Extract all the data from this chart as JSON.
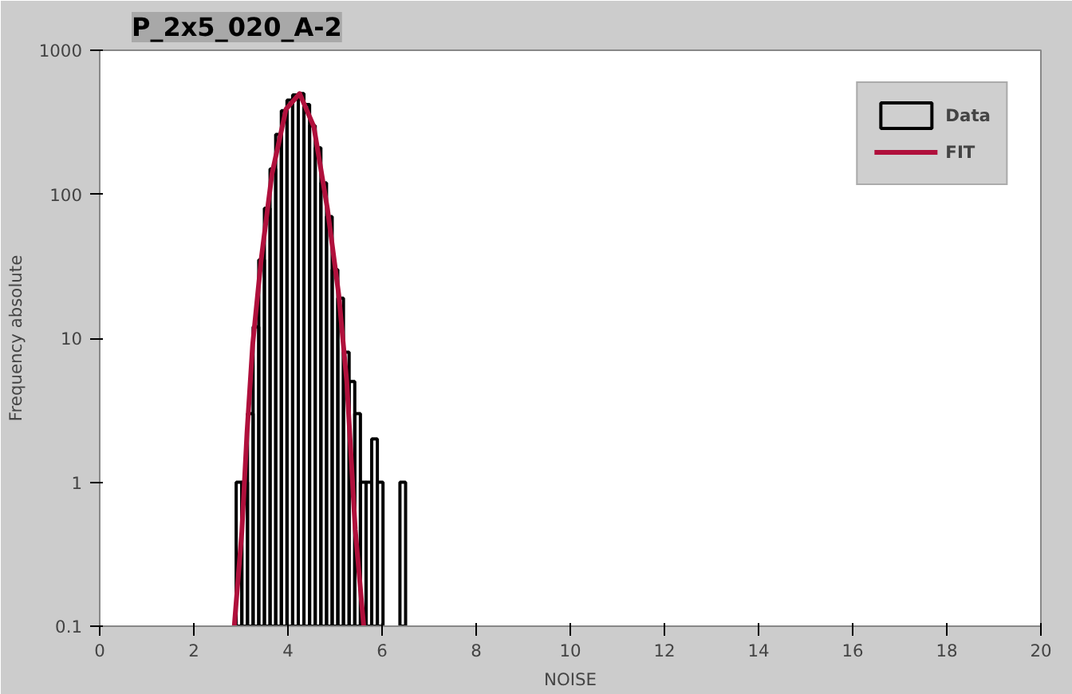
{
  "chart_data": {
    "type": "histogram",
    "title": "P_2x5_020_A-2",
    "xlabel": "NOISE",
    "ylabel": "Frequency absolute",
    "log": "y",
    "xlim": [
      0,
      20
    ],
    "xticks": [
      0,
      2,
      4,
      6,
      8,
      10,
      12,
      14,
      16,
      18,
      20
    ],
    "ylim": [
      0.1,
      1000
    ],
    "yticks": [
      0.1,
      1,
      10,
      100,
      1000
    ],
    "grid": false,
    "legend": "top right",
    "series": [
      {
        "name": "Data",
        "color": "#000000",
        "bins": [
          2.9,
          3.02,
          3.14,
          3.26,
          3.38,
          3.5,
          3.62,
          3.74,
          3.86,
          3.98,
          4.1,
          4.22,
          4.34,
          4.46,
          4.58,
          4.7,
          4.82,
          4.94,
          5.06,
          5.18,
          5.3,
          5.42,
          5.54,
          5.66,
          5.78,
          5.9,
          6.02,
          6.14,
          6.26,
          6.38,
          6.5
        ],
        "values": [
          1,
          1,
          3,
          12,
          35,
          80,
          150,
          260,
          380,
          450,
          490,
          500,
          420,
          300,
          210,
          120,
          70,
          30,
          19,
          8,
          5,
          3,
          1,
          1,
          2,
          1,
          null,
          null,
          null,
          1
        ]
      },
      {
        "name": "FIT",
        "type": "line",
        "color": "#b0103c",
        "x": [
          2.86,
          3.02,
          3.13,
          3.25,
          3.43,
          3.66,
          3.96,
          4.25,
          4.55,
          4.84,
          5.08,
          5.25,
          5.43,
          5.61
        ],
        "values": [
          0.1,
          0.45,
          2.2,
          9,
          35,
          138,
          390,
          500,
          295,
          79,
          20,
          5,
          0.47,
          0.1
        ]
      }
    ]
  }
}
